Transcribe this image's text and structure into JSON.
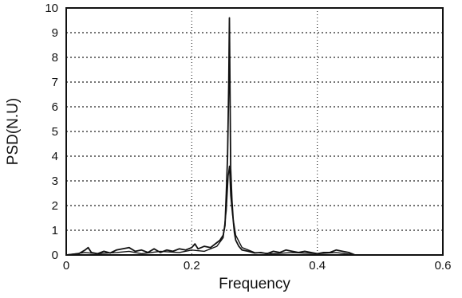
{
  "chart_data": {
    "type": "line",
    "title": "",
    "xlabel": "Frequency",
    "ylabel": "PSD(N.U)",
    "xlim": [
      0,
      0.6
    ],
    "ylim": [
      0,
      10
    ],
    "x_ticks": [
      "0",
      "0.2",
      "0.4",
      "0.6"
    ],
    "y_ticks": [
      "0",
      "1",
      "2",
      "3",
      "4",
      "5",
      "6",
      "7",
      "8",
      "9",
      "10"
    ],
    "grid": true,
    "grid_style": "dotted",
    "legend": "none",
    "line_color": "#111111",
    "series": [
      {
        "x": [
          0.0,
          0.02,
          0.03,
          0.035,
          0.04,
          0.05,
          0.06,
          0.07,
          0.08,
          0.09,
          0.1,
          0.11,
          0.12,
          0.13,
          0.14,
          0.15,
          0.16,
          0.17,
          0.18,
          0.19,
          0.2,
          0.205,
          0.21,
          0.22,
          0.23,
          0.24,
          0.245,
          0.25,
          0.253,
          0.255,
          0.257,
          0.259,
          0.26,
          0.261,
          0.262,
          0.264,
          0.266,
          0.268,
          0.27,
          0.275,
          0.28,
          0.29,
          0.3,
          0.31,
          0.32,
          0.33,
          0.34,
          0.35,
          0.36,
          0.37,
          0.38,
          0.39,
          0.4,
          0.41,
          0.42,
          0.43,
          0.44,
          0.45,
          0.46
        ],
        "y": [
          0.0,
          0.05,
          0.2,
          0.3,
          0.1,
          0.05,
          0.15,
          0.08,
          0.2,
          0.25,
          0.3,
          0.15,
          0.2,
          0.1,
          0.25,
          0.1,
          0.2,
          0.15,
          0.25,
          0.2,
          0.3,
          0.45,
          0.25,
          0.35,
          0.3,
          0.5,
          0.6,
          0.8,
          1.2,
          2.5,
          4.0,
          7.0,
          9.6,
          6.5,
          3.5,
          2.2,
          1.4,
          0.9,
          0.6,
          0.35,
          0.2,
          0.15,
          0.08,
          0.1,
          0.05,
          0.15,
          0.1,
          0.2,
          0.15,
          0.1,
          0.15,
          0.1,
          0.05,
          0.1,
          0.1,
          0.2,
          0.15,
          0.1,
          0.0
        ]
      },
      {
        "x": [
          0.0,
          0.03,
          0.05,
          0.08,
          0.1,
          0.12,
          0.15,
          0.18,
          0.2,
          0.22,
          0.24,
          0.25,
          0.255,
          0.258,
          0.26,
          0.262,
          0.265,
          0.27,
          0.28,
          0.3,
          0.33,
          0.36,
          0.4,
          0.43,
          0.46
        ],
        "y": [
          0.0,
          0.1,
          0.05,
          0.1,
          0.15,
          0.05,
          0.15,
          0.1,
          0.2,
          0.15,
          0.35,
          0.7,
          1.8,
          3.2,
          3.6,
          2.4,
          1.6,
          0.8,
          0.3,
          0.1,
          0.05,
          0.1,
          0.05,
          0.1,
          0.0
        ]
      }
    ]
  }
}
